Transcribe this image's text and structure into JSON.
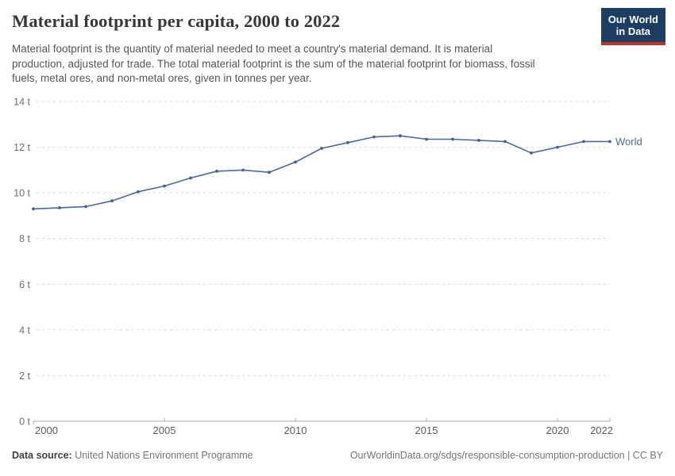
{
  "header": {
    "title": "Material footprint per capita, 2000 to 2022",
    "subtitle_lines": [
      "Material footprint is the quantity of material needed to meet a country's material demand. It is material",
      "production, adjusted for trade. The total material footprint is the sum of the material footprint for biomass, fossil",
      "fuels, metal ores, and non-metal ores, given in tonnes per year."
    ],
    "logo": {
      "line1": "Our World",
      "line2": "in Data",
      "bg_color": "#1d3d63",
      "stripe_color": "#bc3328"
    }
  },
  "chart_data": {
    "type": "line",
    "title": "Material footprint per capita, 2000 to 2022",
    "x": [
      2000,
      2001,
      2002,
      2003,
      2004,
      2005,
      2006,
      2007,
      2008,
      2009,
      2010,
      2011,
      2012,
      2013,
      2014,
      2015,
      2016,
      2017,
      2018,
      2019,
      2020,
      2021,
      2022
    ],
    "series": [
      {
        "name": "World",
        "color": "#4c6a9c",
        "marker_color": "#44618f",
        "values": [
          9.3,
          9.35,
          9.4,
          9.65,
          10.05,
          10.3,
          10.65,
          10.95,
          11.0,
          10.9,
          11.35,
          11.95,
          12.2,
          12.45,
          12.5,
          12.35,
          12.35,
          12.3,
          12.25,
          11.75,
          12.0,
          12.25,
          12.25
        ]
      }
    ],
    "xlabel": "",
    "ylabel": "",
    "ylim": [
      0,
      14
    ],
    "yticks": [
      0,
      2,
      4,
      6,
      8,
      10,
      12,
      14
    ],
    "ytick_suffix": " t",
    "xticks": [
      2000,
      2005,
      2010,
      2015,
      2020,
      2022
    ],
    "grid": "horizontal-dashed",
    "legend": "inline-end-label"
  },
  "footer": {
    "datasource_label": "Data source:",
    "datasource_value": " United Nations Environment Programme",
    "link": "OurWorldinData.org/sdgs/responsible-consumption-production | CC BY"
  }
}
